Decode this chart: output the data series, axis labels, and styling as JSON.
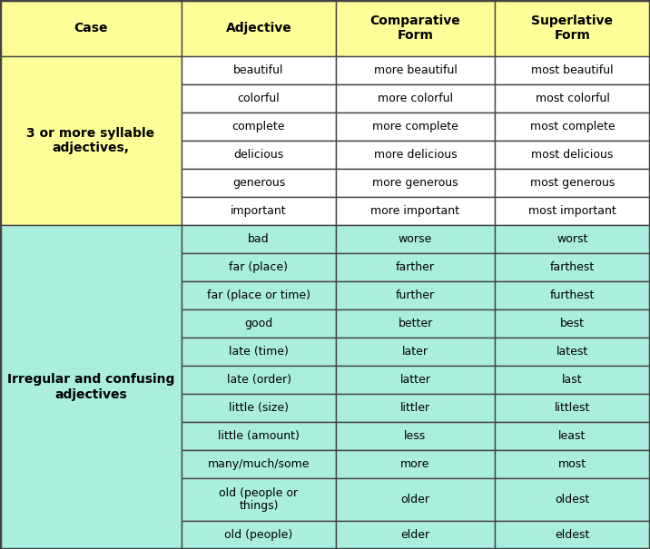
{
  "header": [
    "Case",
    "Adjective",
    "Comparative\nForm",
    "Superlative\nForm"
  ],
  "section1_case": "3 or more syllable\nadjectives,",
  "section1_rows": [
    [
      "beautiful",
      "more beautiful",
      "most beautiful"
    ],
    [
      "colorful",
      "more colorful",
      "most colorful"
    ],
    [
      "complete",
      "more complete",
      "most complete"
    ],
    [
      "delicious",
      "more delicious",
      "most delicious"
    ],
    [
      "generous",
      "more generous",
      "most generous"
    ],
    [
      "important",
      "more important",
      "most important"
    ]
  ],
  "section2_case": "Irregular and confusing\nadjectives",
  "section2_rows": [
    [
      "bad",
      "worse",
      "worst"
    ],
    [
      "far (place)",
      "farther",
      "farthest"
    ],
    [
      "far (place or time)",
      "further",
      "furthest"
    ],
    [
      "good",
      "better",
      "best"
    ],
    [
      "late (time)",
      "later",
      "latest"
    ],
    [
      "late (order)",
      "latter",
      "last"
    ],
    [
      "little (size)",
      "littler",
      "littlest"
    ],
    [
      "little (amount)",
      "less",
      "least"
    ],
    [
      "many/much/some",
      "more",
      "most"
    ],
    [
      "old (people or\nthings)",
      "older",
      "oldest"
    ],
    [
      "old (people)",
      "elder",
      "eldest"
    ]
  ],
  "header_bg": "#FFFF99",
  "section1_case_bg": "#FFFF99",
  "section2_case_bg": "#AAEEDD",
  "section1_row_bg": "#FFFFFF",
  "section2_row_bg": "#AAEEDD",
  "border_color": "#444444",
  "text_color": "#000000",
  "header_font_size": 10,
  "body_font_size": 9,
  "fig_width": 7.16,
  "fig_height": 6.05,
  "dpi": 100
}
